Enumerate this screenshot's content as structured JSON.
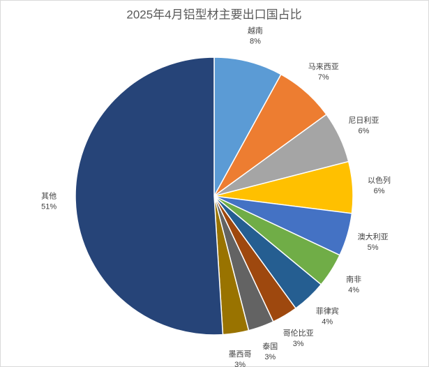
{
  "chart_data": {
    "type": "pie",
    "title": "2025年4月铝型材主要出口国占比",
    "categories": [
      "越南",
      "马来西亚",
      "尼日利亚",
      "以色列",
      "澳大利亚",
      "南非",
      "菲律宾",
      "哥伦比亚",
      "泰国",
      "墨西哥",
      "其他"
    ],
    "values": [
      8,
      7,
      6,
      6,
      5,
      4,
      4,
      3,
      3,
      3,
      51
    ],
    "value_labels": [
      "8%",
      "7%",
      "6%",
      "6%",
      "5%",
      "4%",
      "4%",
      "3%",
      "3%",
      "3%",
      "51%"
    ],
    "colors": [
      "#5b9bd5",
      "#ed7d31",
      "#a5a5a5",
      "#ffc000",
      "#4472c4",
      "#70ad47",
      "#255e91",
      "#9e480e",
      "#636363",
      "#997300",
      "#264478"
    ]
  }
}
